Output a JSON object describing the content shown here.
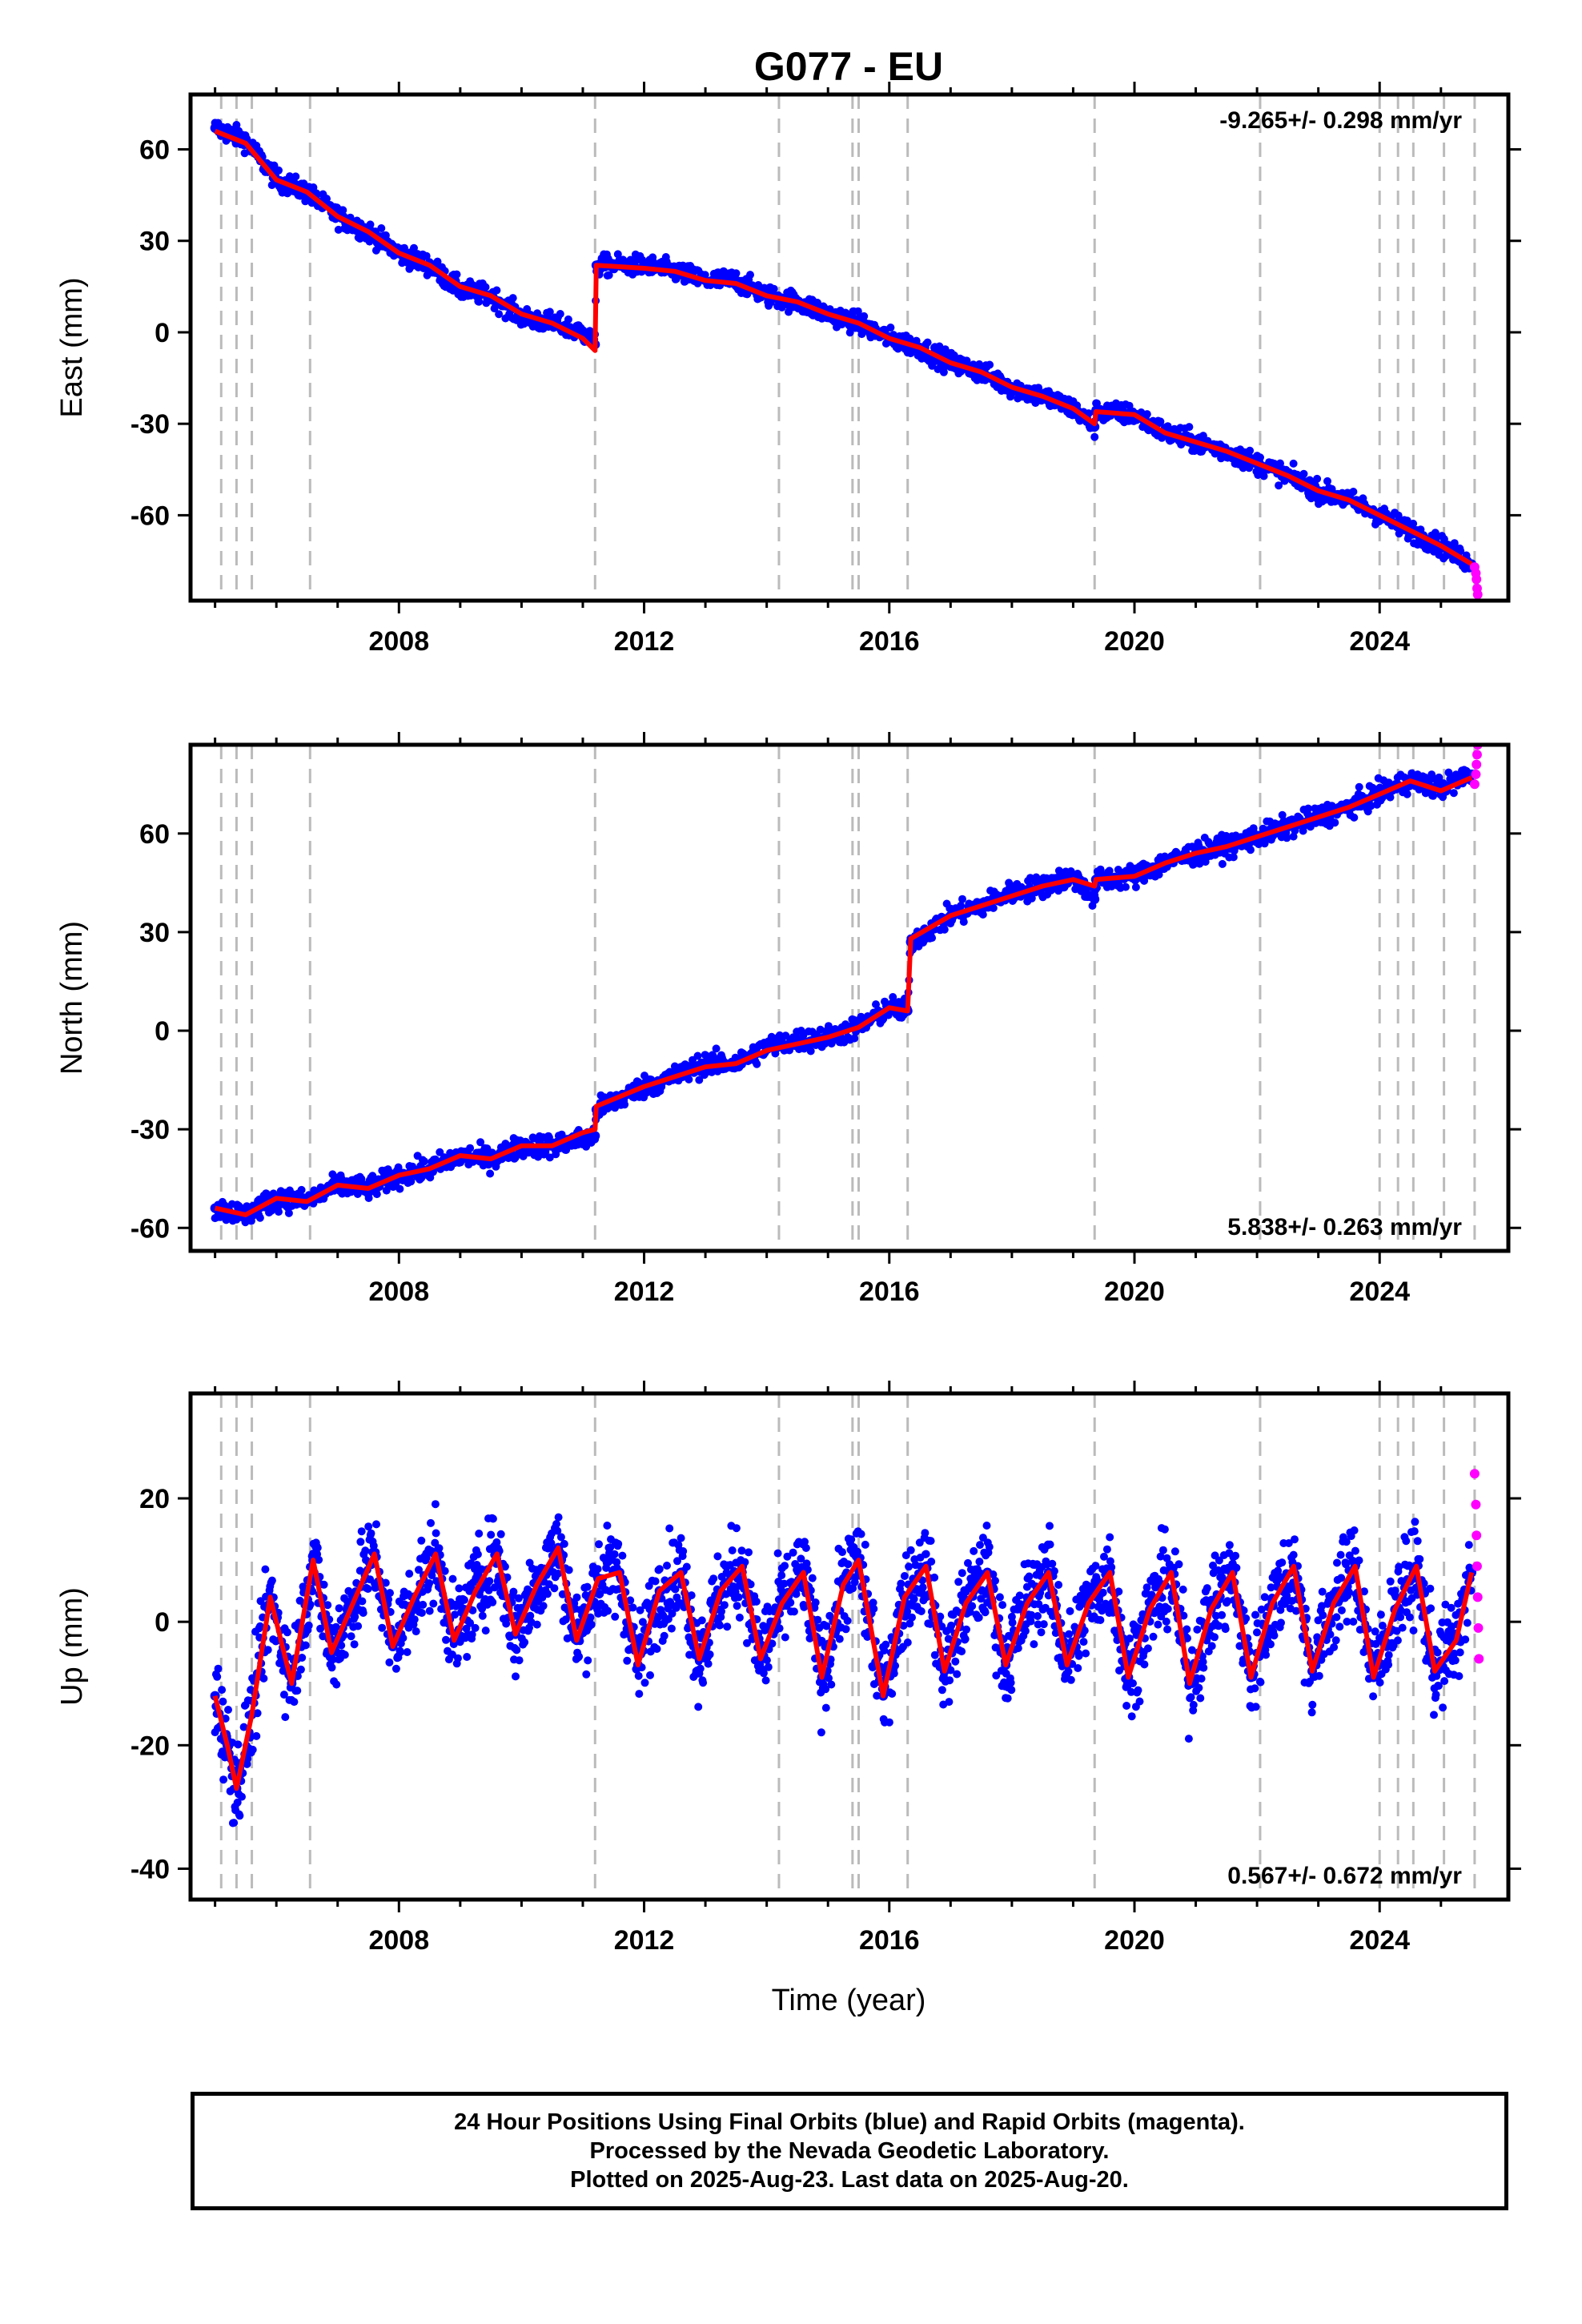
{
  "figure": {
    "title": "G077 - EU",
    "xlabel": "Time (year)"
  },
  "chart_data": [
    {
      "type": "scatter",
      "panel": "east",
      "title": "G077 - EU",
      "ylabel": "East (mm)",
      "xlim": [
        2004.6,
        2026.1
      ],
      "ylim": [
        -88,
        78
      ],
      "xticks": [
        2008,
        2012,
        2016,
        2020,
        2024
      ],
      "yticks": [
        60,
        30,
        0,
        -30,
        -60
      ],
      "rate_text": "-9.265+/- 0.298 mm/yr",
      "rate_position": "top-right",
      "event_lines": [
        2005.1,
        2005.35,
        2005.6,
        2006.55,
        2011.2,
        2014.2,
        2015.4,
        2015.5,
        2016.3,
        2019.35,
        2022.05,
        2024.0,
        2024.3,
        2024.55,
        2025.05,
        2025.55
      ],
      "rapid_points": [
        [
          2025.55,
          -77
        ],
        [
          2025.57,
          -79
        ],
        [
          2025.58,
          -81
        ],
        [
          2025.59,
          -84
        ],
        [
          2025.6,
          -86
        ]
      ],
      "series": [
        {
          "color": "#0000ff",
          "style": "dots",
          "x": [
            2005.0,
            2005.5,
            2006.0,
            2006.5,
            2007.0,
            2007.5,
            2008.0,
            2008.5,
            2009.0,
            2009.5,
            2010.0,
            2010.5,
            2011.0,
            2011.2,
            2011.22,
            2012.0,
            2012.5,
            2013.0,
            2013.5,
            2014.0,
            2014.5,
            2015.0,
            2015.5,
            2016.0,
            2016.5,
            2017.0,
            2017.5,
            2018.0,
            2018.5,
            2019.0,
            2019.35,
            2019.37,
            2020.0,
            2020.5,
            2021.0,
            2021.5,
            2022.0,
            2022.5,
            2023.0,
            2023.5,
            2024.0,
            2024.5,
            2025.0,
            2025.5
          ],
          "y": [
            67,
            63,
            50,
            46,
            38,
            33,
            26,
            22,
            14,
            12,
            5,
            3,
            0,
            -4,
            22,
            22,
            20,
            17,
            17,
            12,
            10,
            6,
            3,
            -2,
            -5,
            -10,
            -13,
            -18,
            -21,
            -25,
            -31,
            -26,
            -27,
            -33,
            -36,
            -39,
            -43,
            -47,
            -52,
            -55,
            -60,
            -65,
            -70,
            -76
          ]
        },
        {
          "color": "#ff0000",
          "style": "line",
          "x": [
            2005.0,
            2005.5,
            2006.0,
            2006.5,
            2007.0,
            2007.5,
            2008.0,
            2008.5,
            2009.0,
            2009.5,
            2010.0,
            2010.5,
            2011.0,
            2011.2,
            2011.22,
            2012.0,
            2012.5,
            2013.0,
            2013.5,
            2014.0,
            2014.5,
            2015.0,
            2015.5,
            2016.0,
            2016.5,
            2017.0,
            2017.5,
            2018.0,
            2018.5,
            2019.0,
            2019.35,
            2019.37,
            2020.0,
            2020.5,
            2021.0,
            2021.5,
            2022.0,
            2022.5,
            2023.0,
            2023.5,
            2024.0,
            2024.5,
            2025.0,
            2025.5
          ],
          "y": [
            66,
            62,
            50,
            46,
            38,
            33,
            26,
            22,
            15,
            12,
            6,
            3,
            -2,
            -6,
            22,
            21,
            20,
            17,
            16,
            12,
            10,
            6,
            3,
            -2,
            -5,
            -10,
            -13,
            -18,
            -21,
            -25,
            -30,
            -26,
            -27,
            -33,
            -36,
            -39,
            -43,
            -47,
            -52,
            -55,
            -60,
            -65,
            -70,
            -76
          ]
        }
      ]
    },
    {
      "type": "scatter",
      "panel": "north",
      "ylabel": "North (mm)",
      "xlim": [
        2004.6,
        2026.1
      ],
      "ylim": [
        -67,
        87
      ],
      "xticks": [
        2008,
        2012,
        2016,
        2020,
        2024
      ],
      "yticks": [
        60,
        30,
        0,
        -30,
        -60
      ],
      "rate_text": "5.838+/- 0.263 mm/yr",
      "rate_position": "bottom-right",
      "event_lines": [
        2005.1,
        2005.35,
        2005.6,
        2006.55,
        2011.2,
        2014.2,
        2015.4,
        2015.5,
        2016.3,
        2019.35,
        2022.05,
        2024.0,
        2024.3,
        2024.55,
        2025.05,
        2025.55
      ],
      "rapid_points": [
        [
          2025.55,
          75
        ],
        [
          2025.57,
          78
        ],
        [
          2025.58,
          81
        ],
        [
          2025.59,
          84
        ],
        [
          2025.6,
          87
        ]
      ],
      "series": [
        {
          "color": "#0000ff",
          "style": "dots",
          "x": [
            2005.0,
            2005.5,
            2006.0,
            2006.5,
            2007.0,
            2007.5,
            2008.0,
            2008.5,
            2009.0,
            2009.5,
            2010.0,
            2010.5,
            2011.0,
            2011.2,
            2011.22,
            2012.0,
            2012.5,
            2013.0,
            2013.5,
            2014.0,
            2014.5,
            2015.0,
            2015.5,
            2016.0,
            2016.3,
            2016.35,
            2017.0,
            2017.5,
            2018.0,
            2018.5,
            2019.0,
            2019.35,
            2019.37,
            2020.0,
            2020.5,
            2021.0,
            2021.5,
            2022.0,
            2022.5,
            2023.0,
            2023.5,
            2024.0,
            2024.5,
            2025.0,
            2025.5
          ],
          "y": [
            -54,
            -56,
            -51,
            -52,
            -47,
            -48,
            -44,
            -42,
            -38,
            -39,
            -35,
            -35,
            -33,
            -32,
            -24,
            -17,
            -14,
            -10,
            -10,
            -5,
            -3,
            -2,
            1,
            7,
            6,
            27,
            35,
            38,
            42,
            44,
            47,
            40,
            46,
            47,
            51,
            54,
            56,
            59,
            62,
            65,
            68,
            72,
            76,
            74,
            78
          ]
        },
        {
          "color": "#ff0000",
          "style": "line",
          "x": [
            2005.0,
            2005.5,
            2006.0,
            2006.5,
            2007.0,
            2007.5,
            2008.0,
            2008.5,
            2009.0,
            2009.5,
            2010.0,
            2010.5,
            2011.0,
            2011.2,
            2011.22,
            2012.0,
            2012.5,
            2013.0,
            2013.5,
            2014.0,
            2014.5,
            2015.0,
            2015.5,
            2016.0,
            2016.3,
            2016.35,
            2017.0,
            2017.5,
            2018.0,
            2018.5,
            2019.0,
            2019.35,
            2019.37,
            2020.0,
            2020.5,
            2021.0,
            2021.5,
            2022.0,
            2022.5,
            2023.0,
            2023.5,
            2024.0,
            2024.5,
            2025.0,
            2025.5
          ],
          "y": [
            -54,
            -56,
            -51,
            -52,
            -47,
            -48,
            -44,
            -42,
            -38,
            -39,
            -35,
            -35,
            -31,
            -30,
            -23,
            -17,
            -14,
            -11,
            -10,
            -6,
            -4,
            -2,
            1,
            7,
            6,
            28,
            35,
            38,
            41,
            44,
            46,
            44,
            46,
            47,
            51,
            54,
            56,
            59,
            62,
            65,
            68,
            72,
            76,
            73,
            77
          ]
        }
      ]
    },
    {
      "type": "scatter",
      "panel": "up",
      "ylabel": "Up (mm)",
      "xlabel": "Time (year)",
      "xlim": [
        2004.6,
        2026.1
      ],
      "ylim": [
        -45,
        37
      ],
      "xticks": [
        2008,
        2012,
        2016,
        2020,
        2024
      ],
      "yticks": [
        20,
        0,
        -20,
        -40
      ],
      "rate_text": "0.567+/- 0.672 mm/yr",
      "rate_position": "bottom-right",
      "event_lines": [
        2005.1,
        2005.35,
        2005.6,
        2006.55,
        2011.2,
        2014.2,
        2015.4,
        2015.5,
        2016.3,
        2019.35,
        2022.05,
        2024.0,
        2024.3,
        2024.55,
        2025.05,
        2025.55
      ],
      "rapid_points": [
        [
          2025.55,
          24
        ],
        [
          2025.57,
          19
        ],
        [
          2025.58,
          14
        ],
        [
          2025.59,
          9
        ],
        [
          2025.6,
          4
        ],
        [
          2025.61,
          -1
        ],
        [
          2025.62,
          -6
        ]
      ],
      "series": [
        {
          "color": "#0000ff",
          "style": "dots",
          "x": [
            2005.0,
            2005.2,
            2005.35,
            2005.6,
            2005.9,
            2006.25,
            2006.6,
            2006.9,
            2007.25,
            2007.6,
            2007.9,
            2008.25,
            2008.6,
            2008.9,
            2009.25,
            2009.6,
            2009.9,
            2010.25,
            2010.6,
            2010.9,
            2011.25,
            2011.6,
            2011.9,
            2012.25,
            2012.6,
            2012.9,
            2013.25,
            2013.6,
            2013.9,
            2014.25,
            2014.6,
            2014.9,
            2015.25,
            2015.5,
            2015.9,
            2016.25,
            2016.6,
            2016.9,
            2017.25,
            2017.6,
            2017.9,
            2018.25,
            2018.6,
            2018.9,
            2019.25,
            2019.6,
            2019.9,
            2020.25,
            2020.6,
            2020.9,
            2021.25,
            2021.6,
            2021.9,
            2022.25,
            2022.6,
            2022.9,
            2023.25,
            2023.6,
            2023.9,
            2024.25,
            2024.6,
            2024.9,
            2025.25,
            2025.5
          ],
          "y": [
            -12,
            -20,
            -27,
            -15,
            4,
            -10,
            10,
            -5,
            3,
            11,
            -4,
            4,
            11,
            -3,
            5,
            11,
            -2,
            6,
            12,
            -3,
            7,
            8,
            -7,
            5,
            8,
            -6,
            5,
            9,
            -6,
            3,
            8,
            -9,
            6,
            10,
            -12,
            4,
            9,
            -8,
            3,
            8,
            -7,
            3,
            8,
            -7,
            3,
            8,
            -9,
            2,
            8,
            -10,
            2,
            8,
            -9,
            3,
            9,
            -8,
            3,
            9,
            -9,
            2,
            9,
            -8,
            -3,
            8
          ]
        },
        {
          "color": "#ff0000",
          "style": "line",
          "x": [
            2005.0,
            2005.2,
            2005.35,
            2005.6,
            2005.9,
            2006.25,
            2006.6,
            2006.9,
            2007.25,
            2007.6,
            2007.9,
            2008.25,
            2008.6,
            2008.9,
            2009.25,
            2009.6,
            2009.9,
            2010.25,
            2010.6,
            2010.9,
            2011.25,
            2011.6,
            2011.9,
            2012.25,
            2012.6,
            2012.9,
            2013.25,
            2013.6,
            2013.9,
            2014.25,
            2014.6,
            2014.9,
            2015.25,
            2015.5,
            2015.9,
            2016.25,
            2016.6,
            2016.9,
            2017.25,
            2017.6,
            2017.9,
            2018.25,
            2018.6,
            2018.9,
            2019.25,
            2019.6,
            2019.9,
            2020.25,
            2020.6,
            2020.9,
            2021.25,
            2021.6,
            2021.9,
            2022.25,
            2022.6,
            2022.9,
            2023.25,
            2023.6,
            2023.9,
            2024.25,
            2024.6,
            2024.9,
            2025.25,
            2025.5
          ],
          "y": [
            -12,
            -20,
            -27,
            -15,
            4,
            -10,
            10,
            -5,
            3,
            11,
            -4,
            4,
            11,
            -3,
            5,
            11,
            -2,
            6,
            12,
            -3,
            7,
            8,
            -7,
            5,
            8,
            -6,
            5,
            9,
            -6,
            3,
            8,
            -9,
            6,
            10,
            -12,
            4,
            9,
            -8,
            3,
            8,
            -7,
            3,
            8,
            -7,
            3,
            8,
            -9,
            2,
            8,
            -10,
            2,
            8,
            -9,
            3,
            9,
            -8,
            3,
            9,
            -9,
            2,
            9,
            -8,
            -3,
            8
          ]
        }
      ]
    }
  ],
  "footer": {
    "line1": "24 Hour Positions Using Final Orbits (blue) and Rapid Orbits (magenta).",
    "line2": "Processed by the Nevada Geodetic Laboratory.",
    "line3": "Plotted on 2025-Aug-23. Last data on 2025-Aug-20."
  },
  "colors": {
    "final_orbits": "#0000ff",
    "rapid_orbits": "#ff00ff",
    "model": "#ff0000",
    "event_lines": "#bbbbbb"
  }
}
